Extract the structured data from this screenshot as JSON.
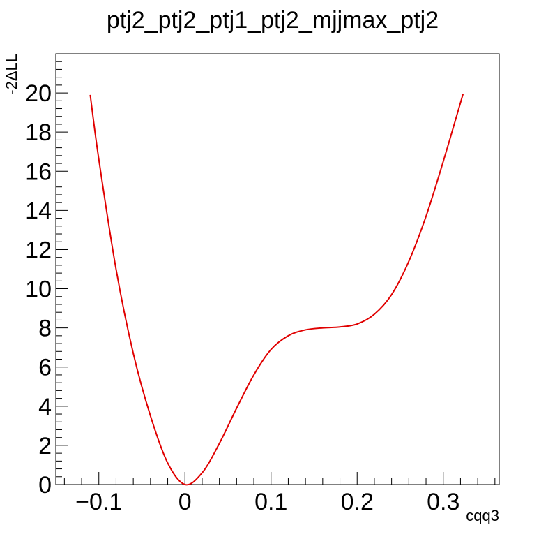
{
  "chart_data": {
    "type": "line",
    "title": "ptj2_ptj2_ptj1_ptj2_mjjmax_ptj2",
    "xlabel": "cqq3",
    "ylabel": "-2ΔLL",
    "xlim": [
      -0.15,
      0.365
    ],
    "ylim": [
      0,
      22
    ],
    "x_ticks": [
      -0.1,
      0,
      0.1,
      0.2,
      0.3
    ],
    "x_tick_labels": [
      "−0.1",
      "0",
      "0.1",
      "0.2",
      "0.3"
    ],
    "y_ticks": [
      0,
      2,
      4,
      6,
      8,
      10,
      12,
      14,
      16,
      18,
      20
    ],
    "y_tick_labels": [
      "0",
      "2",
      "4",
      "6",
      "8",
      "10",
      "12",
      "14",
      "16",
      "18",
      "20"
    ],
    "grid": false,
    "series": [
      {
        "color": "#e00000",
        "x": [
          -0.11,
          -0.1,
          -0.08,
          -0.06,
          -0.04,
          -0.02,
          0.0,
          0.02,
          0.04,
          0.06,
          0.08,
          0.1,
          0.12,
          0.14,
          0.16,
          0.18,
          0.2,
          0.22,
          0.24,
          0.26,
          0.28,
          0.3,
          0.32,
          0.323
        ],
        "y": [
          19.9,
          16.6,
          11.0,
          6.7,
          3.5,
          1.1,
          0.0,
          0.6,
          2.1,
          3.9,
          5.6,
          6.9,
          7.6,
          7.9,
          8.0,
          8.05,
          8.2,
          8.7,
          9.7,
          11.4,
          13.7,
          16.5,
          19.5,
          19.95
        ]
      }
    ]
  }
}
